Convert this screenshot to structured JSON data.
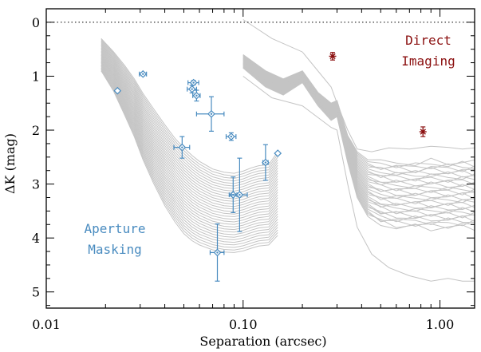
{
  "chart_data": {
    "type": "scatter",
    "title": "",
    "xlabel": "Separation (arcsec)",
    "ylabel": "ΔK (mag)",
    "x_scale": "log",
    "xlim": [
      0.01,
      1.5
    ],
    "ylim": [
      5.3,
      -0.25
    ],
    "y_inverted": true,
    "x_ticks": [
      0.01,
      0.1,
      1.0
    ],
    "x_tick_labels": [
      "0.01",
      "0.10",
      "1.00"
    ],
    "y_ticks": [
      0,
      1,
      2,
      3,
      4,
      5
    ],
    "y_tick_labels": [
      "0",
      "1",
      "2",
      "3",
      "4",
      "5"
    ],
    "grid": false,
    "reference_line": {
      "y": 0,
      "style": "dotted"
    },
    "colors": {
      "curves": "#c4c4c4",
      "masking": "#4a8cc0",
      "imaging": "#8b1010",
      "axis": "#000000"
    },
    "annotations": [
      {
        "id": "aperture",
        "lines": [
          "Aperture",
          "Masking"
        ],
        "color": "#4a8cc0"
      },
      {
        "id": "direct",
        "lines": [
          "Direct",
          "Imaging"
        ],
        "color": "#8b1010"
      }
    ],
    "masking_detections": [
      {
        "x": 0.031,
        "y": 0.96,
        "xerr": 0.0013,
        "yerr": 0.03,
        "marker": "diamond-dot"
      },
      {
        "x": 0.056,
        "y": 1.12,
        "xerr": 0.0035,
        "yerr": 0.04,
        "marker": "diamond-dot"
      },
      {
        "x": 0.055,
        "y": 1.24,
        "xerr": 0.003,
        "yerr": 0.07,
        "marker": "diamond-dot"
      },
      {
        "x": 0.058,
        "y": 1.36,
        "xerr": 0.0025,
        "yerr": 0.1,
        "marker": "diamond-dot"
      },
      {
        "x": 0.069,
        "y": 1.7,
        "xerr": 0.011,
        "yerr": 0.32,
        "marker": "diamond-dot"
      },
      {
        "x": 0.087,
        "y": 2.12,
        "xerr": 0.005,
        "yerr": 0.07,
        "marker": "diamond-dot"
      },
      {
        "x": 0.049,
        "y": 2.32,
        "xerr": 0.0045,
        "yerr": 0.2,
        "marker": "diamond-dot"
      },
      {
        "x": 0.13,
        "y": 2.6,
        "xerr": 0.004,
        "yerr": 0.33,
        "marker": "diamond-dot"
      },
      {
        "x": 0.089,
        "y": 3.2,
        "xerr": 0.004,
        "yerr": 0.33,
        "marker": "diamond-dot"
      },
      {
        "x": 0.096,
        "y": 3.2,
        "xerr": 0.009,
        "yerr": 0.68,
        "marker": "diamond-dot"
      },
      {
        "x": 0.074,
        "y": 4.27,
        "xerr": 0.006,
        "yerr": 0.53,
        "marker": "diamond-dot"
      },
      {
        "x": 0.023,
        "y": 1.27,
        "marker": "diamond-open"
      },
      {
        "x": 0.15,
        "y": 2.43,
        "marker": "diamond-open"
      }
    ],
    "imaging_detections": [
      {
        "x": 0.285,
        "y": 0.63,
        "yerr": 0.07
      },
      {
        "x": 0.82,
        "y": 2.03,
        "yerr": 0.09
      }
    ],
    "masking_curves": {
      "count": 32,
      "x": [
        0.019,
        0.022,
        0.025,
        0.028,
        0.031,
        0.035,
        0.04,
        0.045,
        0.05,
        0.055,
        0.06,
        0.07,
        0.08,
        0.09,
        0.1,
        0.11,
        0.12,
        0.135,
        0.15
      ],
      "y_brightest": [
        0.3,
        0.55,
        0.8,
        1.05,
        1.32,
        1.6,
        1.9,
        2.15,
        2.33,
        2.47,
        2.58,
        2.72,
        2.78,
        2.8,
        2.76,
        2.7,
        2.66,
        2.64,
        2.4
      ],
      "y_faintest": [
        0.9,
        1.28,
        1.72,
        2.12,
        2.55,
        2.98,
        3.4,
        3.7,
        3.92,
        4.05,
        4.13,
        4.22,
        4.26,
        4.27,
        4.24,
        4.19,
        4.15,
        4.13,
        3.95
      ]
    },
    "imaging_curves": {
      "count": 32,
      "x": [
        0.1,
        0.13,
        0.16,
        0.2,
        0.24,
        0.28,
        0.3,
        0.34,
        0.38,
        0.43,
        0.5,
        0.6,
        0.75,
        0.9,
        1.1,
        1.3,
        1.5
      ],
      "y_brightest": [
        0.6,
        0.9,
        1.05,
        0.9,
        1.3,
        1.5,
        1.45,
        2.1,
        2.4,
        2.55,
        2.6,
        2.6,
        2.62,
        2.58,
        2.6,
        2.6,
        2.6
      ],
      "y_faintest": [
        0.85,
        1.2,
        1.35,
        1.12,
        1.55,
        1.82,
        1.75,
        2.6,
        3.25,
        3.6,
        3.75,
        3.8,
        3.8,
        3.82,
        3.8,
        3.8,
        3.8
      ],
      "outliers": [
        {
          "x": [
            0.1,
            0.14,
            0.2,
            0.28,
            0.3,
            0.34,
            0.38,
            0.45,
            0.55,
            0.7,
            0.9,
            1.1,
            1.3,
            1.5
          ],
          "y": [
            -0.05,
            0.3,
            0.55,
            1.2,
            1.5,
            2.0,
            2.35,
            2.4,
            2.33,
            2.35,
            2.3,
            2.32,
            2.35,
            2.33
          ]
        },
        {
          "x": [
            0.1,
            0.14,
            0.2,
            0.28,
            0.3,
            0.34,
            0.38,
            0.45,
            0.55,
            0.7,
            0.9,
            1.1,
            1.3,
            1.5
          ],
          "y": [
            1.0,
            1.4,
            1.55,
            1.95,
            2.0,
            3.0,
            3.8,
            4.3,
            4.55,
            4.7,
            4.8,
            4.75,
            4.8,
            4.8
          ]
        }
      ]
    }
  }
}
